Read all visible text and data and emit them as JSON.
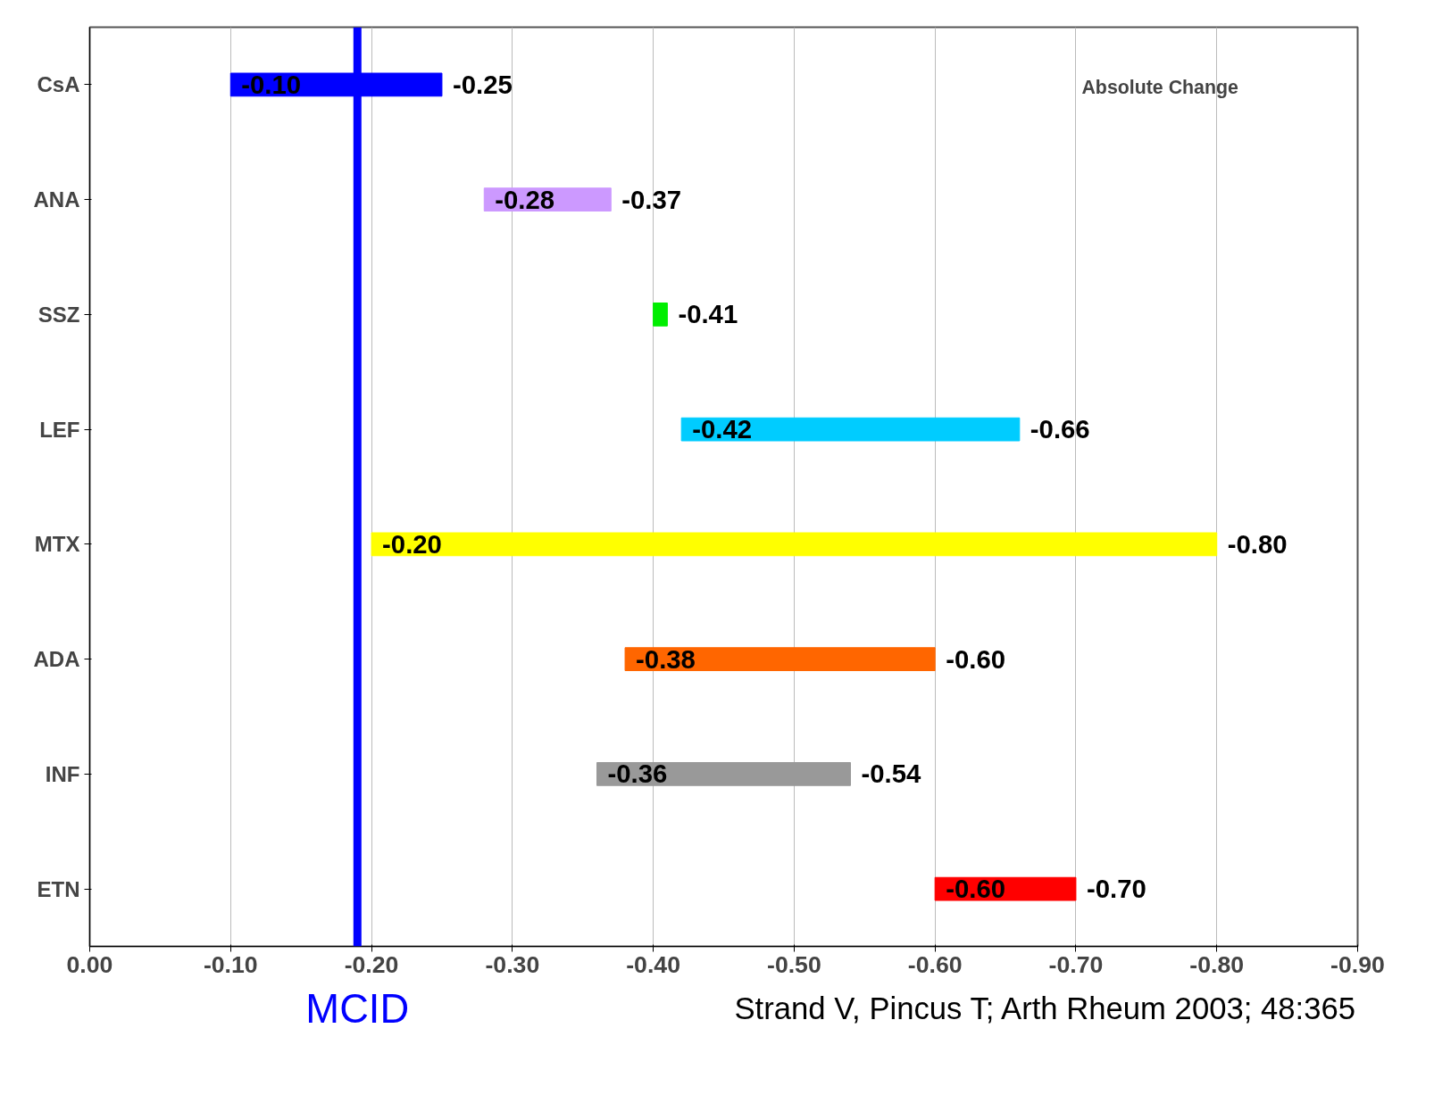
{
  "chart_data": {
    "type": "bar",
    "orientation": "horizontal",
    "categories": [
      "CsA",
      "ANA",
      "SSZ",
      "LEF",
      "MTX",
      "ADA",
      "INF",
      "ETN"
    ],
    "base": [
      -0.1,
      -0.28,
      -0.4,
      -0.42,
      -0.2,
      -0.38,
      -0.36,
      -0.6
    ],
    "values": [
      -0.15,
      -0.09,
      -0.01,
      -0.24,
      -0.6,
      -0.22,
      -0.18,
      -0.1
    ],
    "colors": [
      "#0000ff",
      "#cc99ff",
      "#00ee00",
      "#00ccff",
      "#ffff00",
      "#ff6600",
      "#999999",
      "#ff0000"
    ],
    "xlim": [
      0,
      -0.9
    ],
    "xticks": [
      {
        "value": 0,
        "label": "0.00"
      },
      {
        "value": -0.1,
        "label": "-0.10"
      },
      {
        "value": -0.2,
        "label": "-0.20"
      },
      {
        "value": -0.3,
        "label": "-0.30"
      },
      {
        "value": -0.4,
        "label": "-0.40"
      },
      {
        "value": -0.5,
        "label": "-0.50"
      },
      {
        "value": -0.6,
        "label": "-0.60"
      },
      {
        "value": -0.7,
        "label": "-0.70"
      },
      {
        "value": -0.8,
        "label": "-0.80"
      },
      {
        "value": -0.9,
        "label": "-0.90"
      }
    ],
    "grid": "x",
    "ref_lines": [
      {
        "axis": "x",
        "value": -0.19,
        "label": "MCID",
        "color": "#0000ff"
      }
    ],
    "annotations": [
      "Absolute Change",
      "Strand V, Pincus T; Arth Rheum 2003; 48:365",
      {
        "text": "-0.10",
        "x": -0.1,
        "y": "CsA"
      },
      {
        "text": "-0.25",
        "x": -0.25,
        "y": "CsA"
      },
      {
        "text": "-0.28",
        "x": -0.28,
        "y": "ANA"
      },
      {
        "text": "-0.37",
        "x": -0.37,
        "y": "ANA"
      },
      {
        "text": "-0.41",
        "x": -0.41,
        "y": "SSZ"
      },
      {
        "text": "-0.42",
        "x": -0.42,
        "y": "LEF"
      },
      {
        "text": "-0.66",
        "x": -0.66,
        "y": "LEF"
      },
      {
        "text": "-0.20",
        "x": -0.2,
        "y": "MTX"
      },
      {
        "text": "-0.80",
        "x": -0.8,
        "y": "MTX"
      },
      {
        "text": "-0.38",
        "x": -0.38,
        "y": "ADA"
      },
      {
        "text": "-0.60",
        "x": -0.6,
        "y": "ADA"
      },
      {
        "text": "-0.36",
        "x": -0.36,
        "y": "INF"
      },
      {
        "text": "-0.54",
        "x": -0.54,
        "y": "INF"
      },
      {
        "text": "-0.60",
        "x": -0.6,
        "y": "ETN"
      },
      {
        "text": "-0.70",
        "x": -0.7,
        "y": "ETN"
      }
    ]
  }
}
